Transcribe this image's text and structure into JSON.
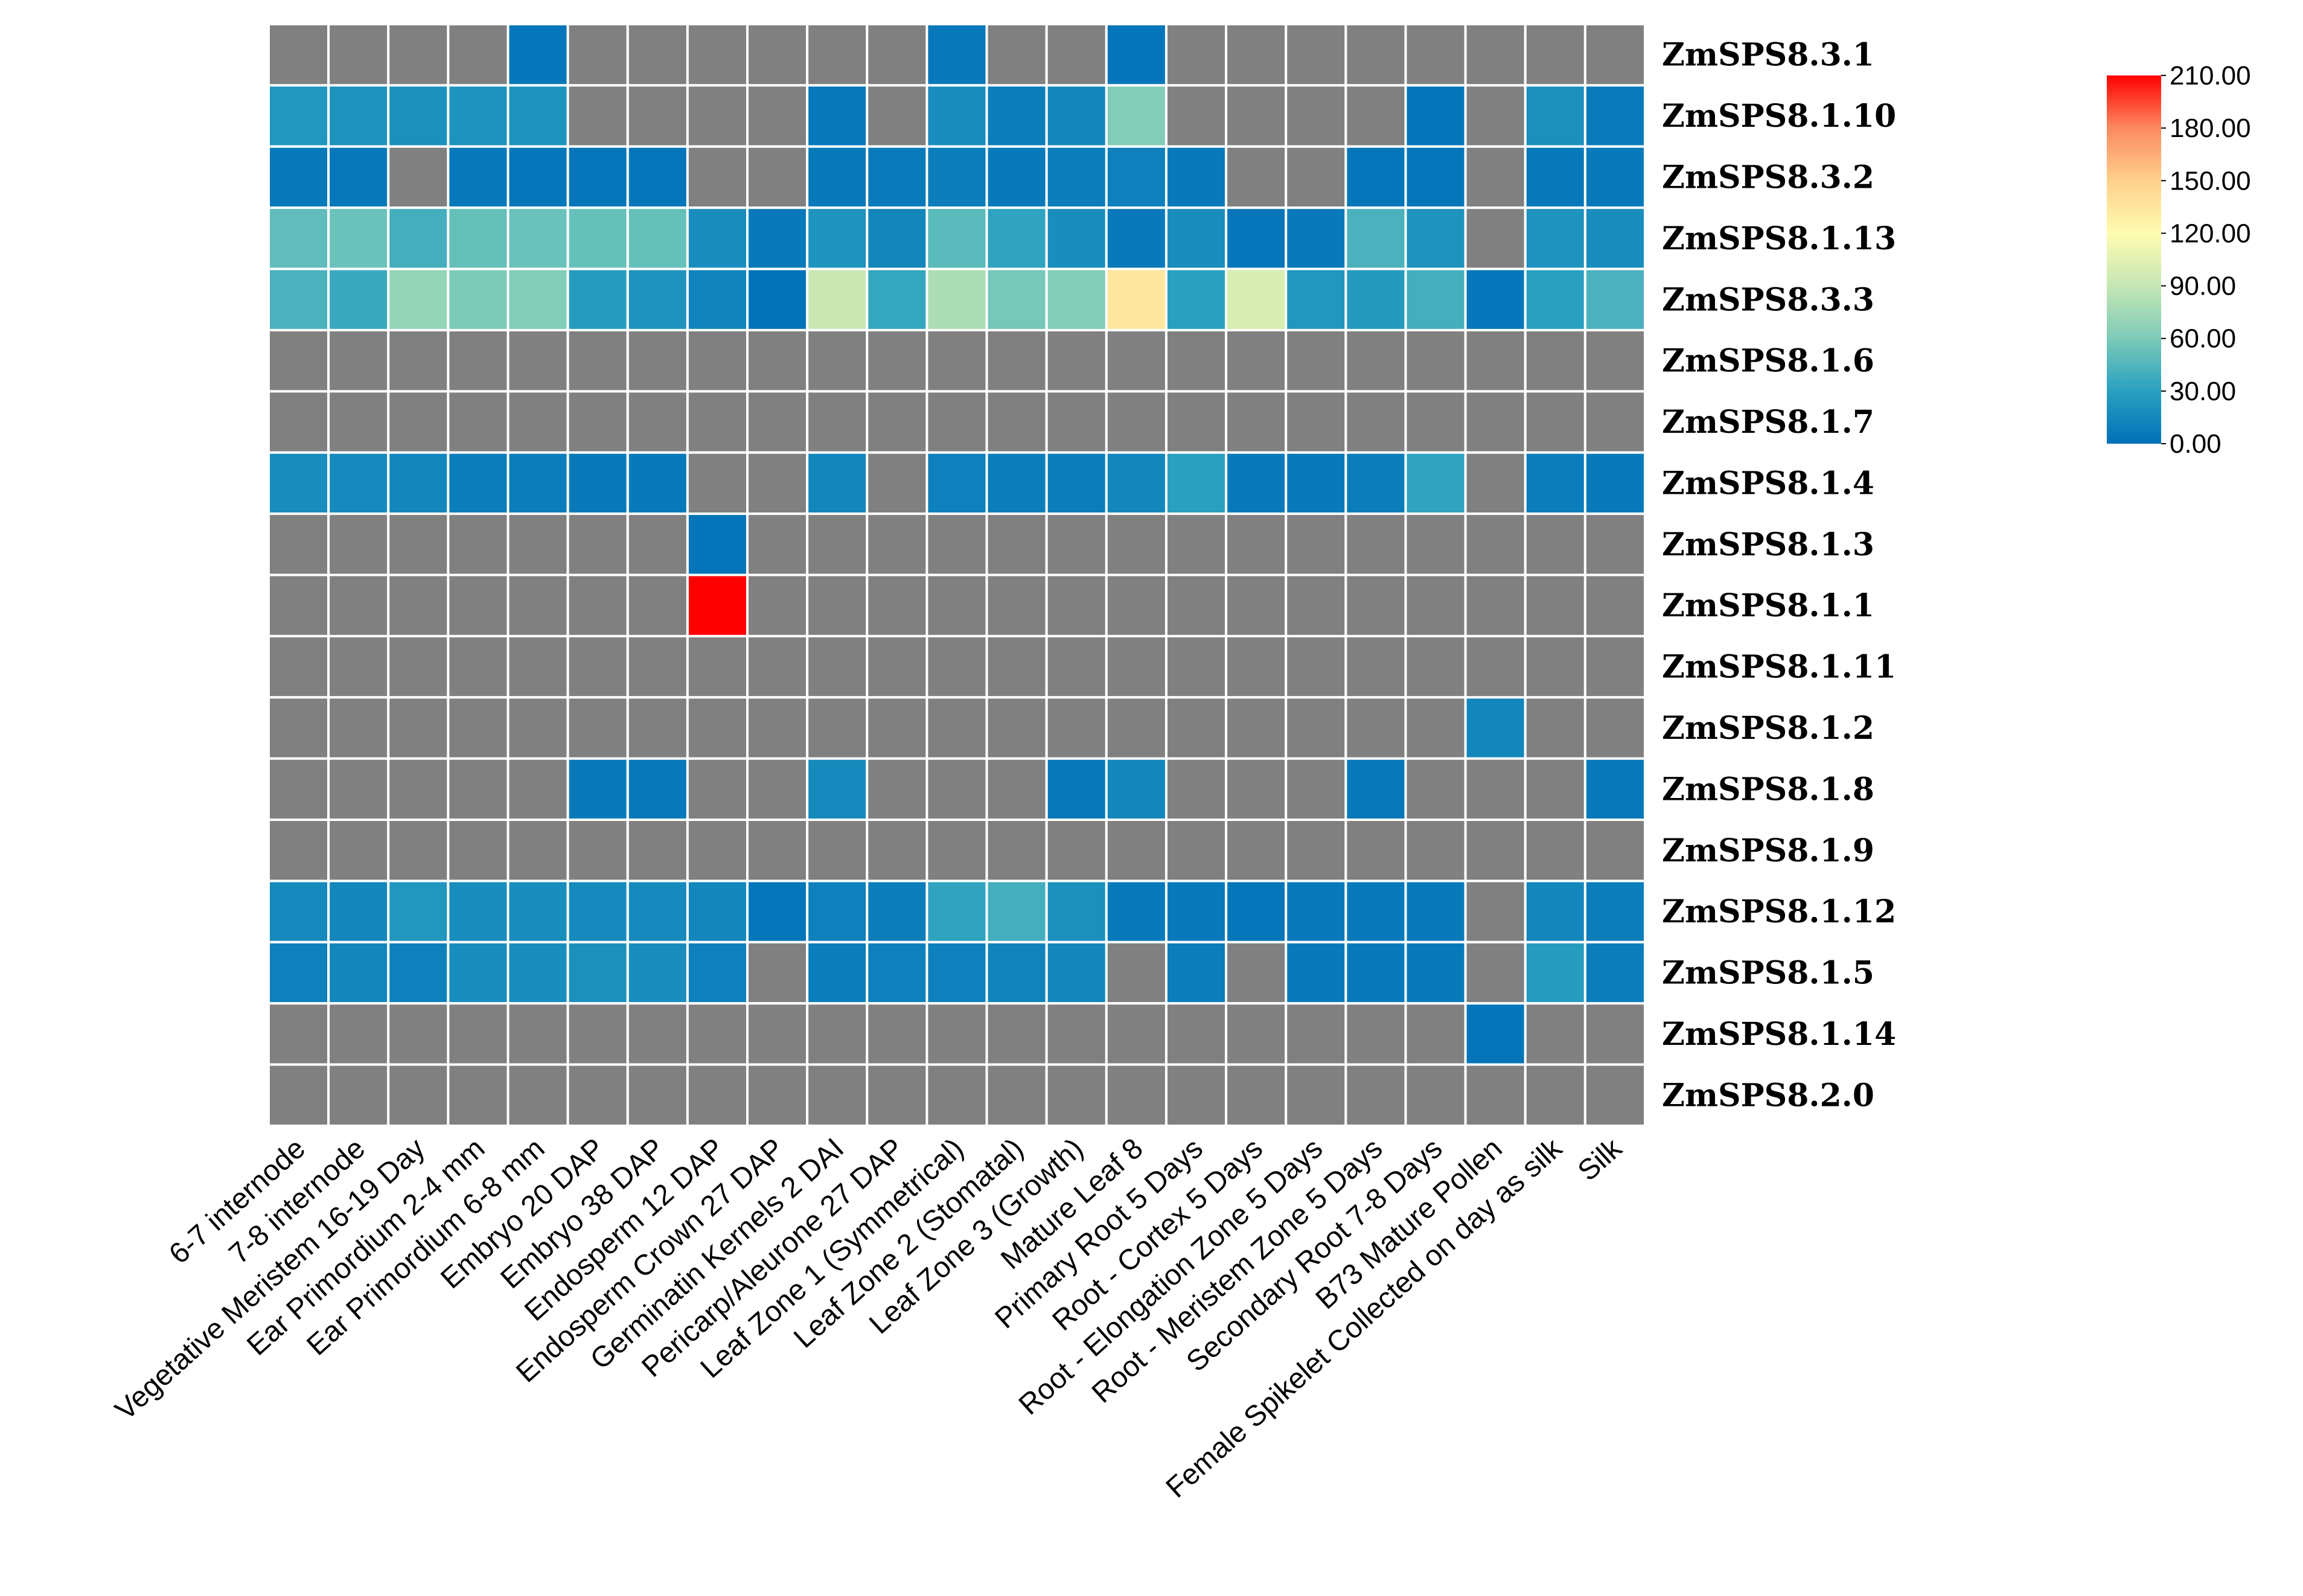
{
  "chart_data": {
    "type": "heatmap",
    "title": "",
    "columns": [
      "6-7 internode",
      "7-8 internode",
      "Vegetative Meristem 16-19 Day",
      "Ear Primordium 2-4 mm",
      "Ear Primordium 6-8 mm",
      "Embryo 20 DAP",
      "Embryo 38 DAP",
      "Endosperm 12 DAP",
      "Endosperm Crown 27 DAP",
      "Germinatin Kernels 2 DAI",
      "Pericarp/Aleurone 27 DAP",
      "Leaf Zone 1 (Symmetrical)",
      "Leaf Zone 2 (Stomatal)",
      "Leaf Zone 3 (Growth)",
      "Mature Leaf 8",
      "Primary Root 5 Days",
      "Root - Cortex 5 Days",
      "Root - Elongation Zone 5 Days",
      "Root - Meristem Zone 5 Days",
      "Secondary Root 7-8 Days",
      "B73 Mature Pollen",
      "Female Spikelet Collected on day as silk",
      "Silk"
    ],
    "rows": [
      "ZmSPS8.3.1",
      "ZmSPS8.1.10",
      "ZmSPS8.3.2",
      "ZmSPS8.1.13",
      "ZmSPS8.3.3",
      "ZmSPS8.1.6",
      "ZmSPS8.1.7",
      "ZmSPS8.1.4",
      "ZmSPS8.1.3",
      "ZmSPS8.1.1",
      "ZmSPS8.1.11",
      "ZmSPS8.1.2",
      "ZmSPS8.1.8",
      "ZmSPS8.1.9",
      "ZmSPS8.1.12",
      "ZmSPS8.1.5",
      "ZmSPS8.1.14",
      "ZmSPS8.2.0"
    ],
    "values": [
      [
        null,
        null,
        null,
        null,
        4,
        null,
        null,
        null,
        null,
        null,
        null,
        5,
        null,
        null,
        3,
        null,
        null,
        null,
        null,
        null,
        null,
        null,
        null
      ],
      [
        24,
        22,
        20,
        22,
        22,
        null,
        null,
        null,
        null,
        5,
        null,
        18,
        8,
        14,
        62,
        null,
        null,
        null,
        null,
        3,
        null,
        20,
        7
      ],
      [
        6,
        5,
        null,
        5,
        4,
        4,
        4,
        null,
        null,
        6,
        7,
        8,
        6,
        8,
        10,
        6,
        null,
        null,
        4,
        4,
        null,
        5,
        6
      ],
      [
        50,
        54,
        40,
        52,
        54,
        52,
        52,
        18,
        6,
        22,
        14,
        48,
        32,
        18,
        6,
        18,
        4,
        6,
        42,
        22,
        null,
        22,
        18
      ],
      [
        42,
        36,
        70,
        60,
        62,
        28,
        22,
        12,
        2,
        92,
        34,
        80,
        58,
        62,
        135,
        30,
        100,
        24,
        26,
        40,
        4,
        30,
        42
      ],
      [
        null,
        null,
        null,
        null,
        null,
        null,
        null,
        null,
        null,
        null,
        null,
        null,
        null,
        null,
        null,
        null,
        null,
        null,
        null,
        null,
        null,
        null,
        null
      ],
      [
        null,
        null,
        null,
        null,
        null,
        null,
        null,
        null,
        null,
        null,
        null,
        null,
        null,
        null,
        null,
        null,
        null,
        null,
        null,
        null,
        null,
        null,
        null
      ],
      [
        18,
        16,
        14,
        8,
        8,
        6,
        6,
        null,
        null,
        14,
        null,
        10,
        8,
        8,
        14,
        30,
        6,
        6,
        8,
        32,
        null,
        8,
        6
      ],
      [
        null,
        null,
        null,
        null,
        null,
        null,
        null,
        3,
        null,
        null,
        null,
        null,
        null,
        null,
        null,
        null,
        null,
        null,
        null,
        null,
        null,
        null,
        null
      ],
      [
        null,
        null,
        null,
        null,
        null,
        null,
        null,
        210,
        null,
        null,
        null,
        null,
        null,
        null,
        null,
        null,
        null,
        null,
        null,
        null,
        null,
        null,
        null
      ],
      [
        null,
        null,
        null,
        null,
        null,
        null,
        null,
        null,
        null,
        null,
        null,
        null,
        null,
        null,
        null,
        null,
        null,
        null,
        null,
        null,
        null,
        null,
        null
      ],
      [
        null,
        null,
        null,
        null,
        null,
        null,
        null,
        null,
        null,
        null,
        null,
        null,
        null,
        null,
        null,
        null,
        null,
        null,
        null,
        null,
        14,
        null,
        null
      ],
      [
        null,
        null,
        null,
        null,
        null,
        6,
        5,
        null,
        null,
        16,
        null,
        null,
        null,
        5,
        14,
        null,
        null,
        null,
        5,
        null,
        null,
        null,
        5
      ],
      [
        null,
        null,
        null,
        null,
        null,
        null,
        null,
        null,
        null,
        null,
        null,
        null,
        null,
        null,
        null,
        null,
        null,
        null,
        null,
        null,
        null,
        null,
        null
      ],
      [
        16,
        14,
        24,
        18,
        18,
        16,
        16,
        14,
        4,
        10,
        8,
        32,
        40,
        20,
        6,
        6,
        4,
        6,
        6,
        6,
        null,
        14,
        8
      ],
      [
        10,
        14,
        10,
        18,
        18,
        20,
        18,
        10,
        null,
        8,
        10,
        10,
        12,
        14,
        null,
        8,
        null,
        6,
        6,
        6,
        null,
        28,
        8
      ],
      [
        null,
        null,
        null,
        null,
        null,
        null,
        null,
        null,
        null,
        null,
        null,
        null,
        null,
        null,
        null,
        null,
        null,
        null,
        null,
        null,
        3,
        null,
        null
      ],
      [
        null,
        null,
        null,
        null,
        null,
        null,
        null,
        null,
        null,
        null,
        null,
        null,
        null,
        null,
        null,
        null,
        null,
        null,
        null,
        null,
        null,
        null,
        null
      ]
    ],
    "missing_color": "#808080",
    "colorbar": {
      "min": 0,
      "max": 210,
      "ticks": [
        "210.00",
        "180.00",
        "150.00",
        "120.00",
        "90.00",
        "60.00",
        "30.00",
        "0.00"
      ],
      "colors": [
        "#0070b8",
        "#29a0c0",
        "#7ccbb8",
        "#c6e6b4",
        "#fefcb0",
        "#fed08c",
        "#fb8a60",
        "#ff0000"
      ]
    },
    "legend_position": "top-right",
    "grid": true
  }
}
